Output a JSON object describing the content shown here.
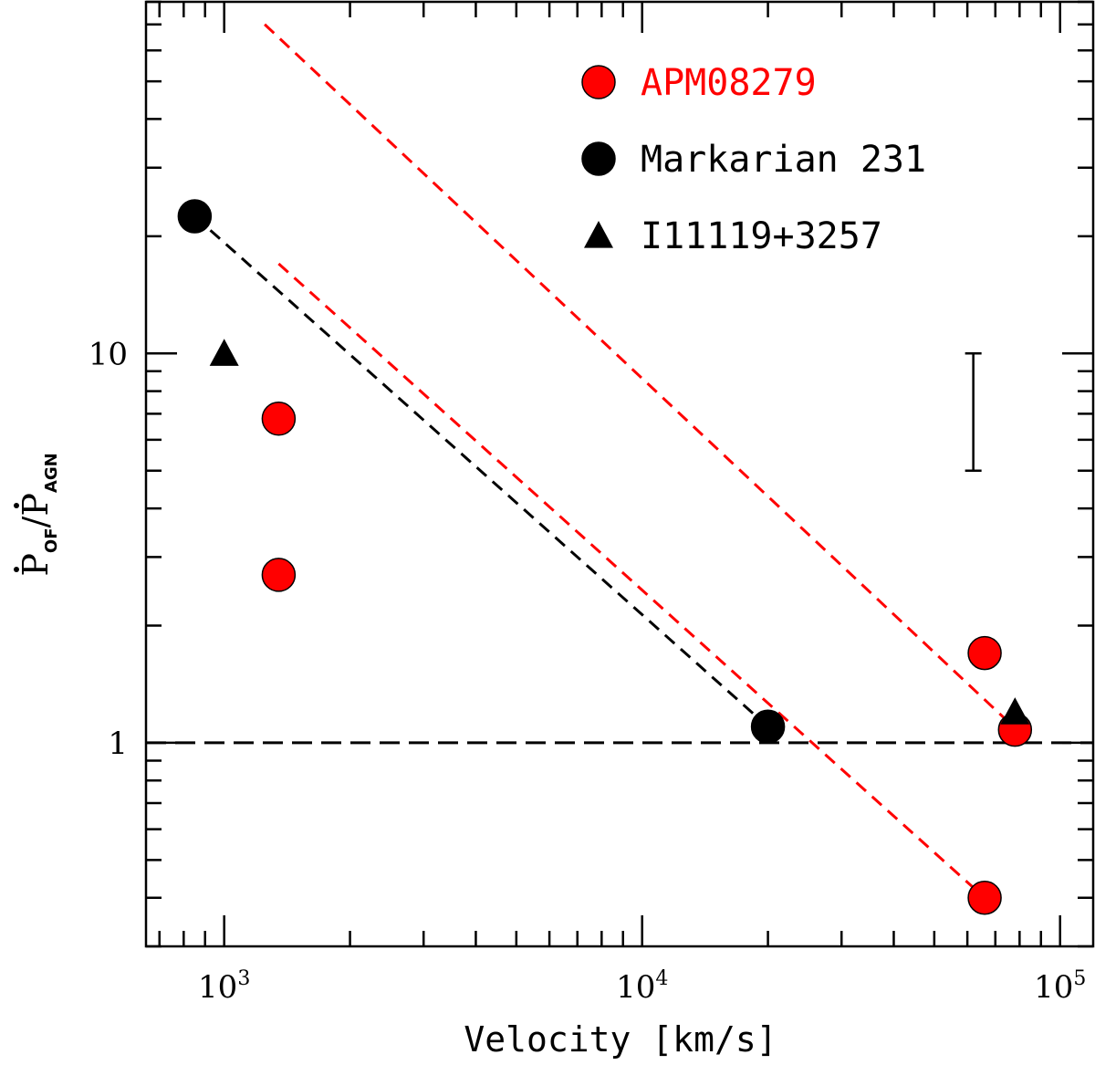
{
  "chart_data": {
    "type": "scatter",
    "xscale": "log",
    "yscale": "log",
    "xlim": [
      650,
      120000
    ],
    "ylim": [
      0.3,
      80
    ],
    "xlabel": "Velocity [km/s]",
    "ylabel": {
      "numerator": "P",
      "numerator_sub": "OF",
      "separator": "/",
      "denominator": "P",
      "denominator_sub": "AGN"
    },
    "x_ticks": [
      {
        "value": 1000,
        "base": "10",
        "exponent": "3"
      },
      {
        "value": 10000,
        "base": "10",
        "exponent": "4"
      },
      {
        "value": 100000,
        "base": "10",
        "exponent": "5"
      }
    ],
    "y_ticks": [
      {
        "value": 1,
        "label": "1"
      },
      {
        "value": 10,
        "label": "10"
      }
    ],
    "series": [
      {
        "name": "APM08279",
        "marker": "circle",
        "color": "#ff0000",
        "points": [
          {
            "x": 1350,
            "y": 6.8
          },
          {
            "x": 1350,
            "y": 2.7
          },
          {
            "x": 66000,
            "y": 1.7
          },
          {
            "x": 78000,
            "y": 1.08
          },
          {
            "x": 66000,
            "y": 0.4
          }
        ]
      },
      {
        "name": "Markarian 231",
        "marker": "circle",
        "color": "#000000",
        "points": [
          {
            "x": 850,
            "y": 22.5
          },
          {
            "x": 20000,
            "y": 1.1
          }
        ]
      },
      {
        "name": "I11119+3257",
        "marker": "triangle",
        "color": "#000000",
        "points": [
          {
            "x": 1000,
            "y": 10
          },
          {
            "x": 78000,
            "y": 1.2
          }
        ]
      }
    ],
    "lines": [
      {
        "name": "black-dashed-fit",
        "color": "#000000",
        "style": "dashed",
        "from": {
          "x": 850,
          "y": 22.5
        },
        "to": {
          "x": 20000,
          "y": 1.1
        }
      },
      {
        "name": "red-dashed-fit-lower",
        "color": "#ff0000",
        "style": "dashed",
        "from": {
          "x": 1350,
          "y": 17
        },
        "to": {
          "x": 66000,
          "y": 0.4
        }
      },
      {
        "name": "red-dashed-fit-upper",
        "color": "#ff0000",
        "style": "dashed",
        "from": {
          "x": 1250,
          "y": 70
        },
        "to": {
          "x": 74000,
          "y": 1.15
        }
      },
      {
        "name": "unity-reference-line",
        "color": "#000000",
        "style": "long-dashed",
        "from": {
          "x": 650,
          "y": 1
        },
        "to": {
          "x": 120000,
          "y": 1
        }
      }
    ],
    "error_bar_example": {
      "x": 62000,
      "y_low": 5,
      "y_high": 10
    },
    "legend": {
      "placement": "top-right",
      "entries": [
        {
          "label": "APM08279",
          "marker": "circle",
          "color": "#ff0000"
        },
        {
          "label": "Markarian 231",
          "marker": "circle",
          "color": "#000000"
        },
        {
          "label": "I11119+3257",
          "marker": "triangle",
          "color": "#000000"
        }
      ]
    }
  }
}
